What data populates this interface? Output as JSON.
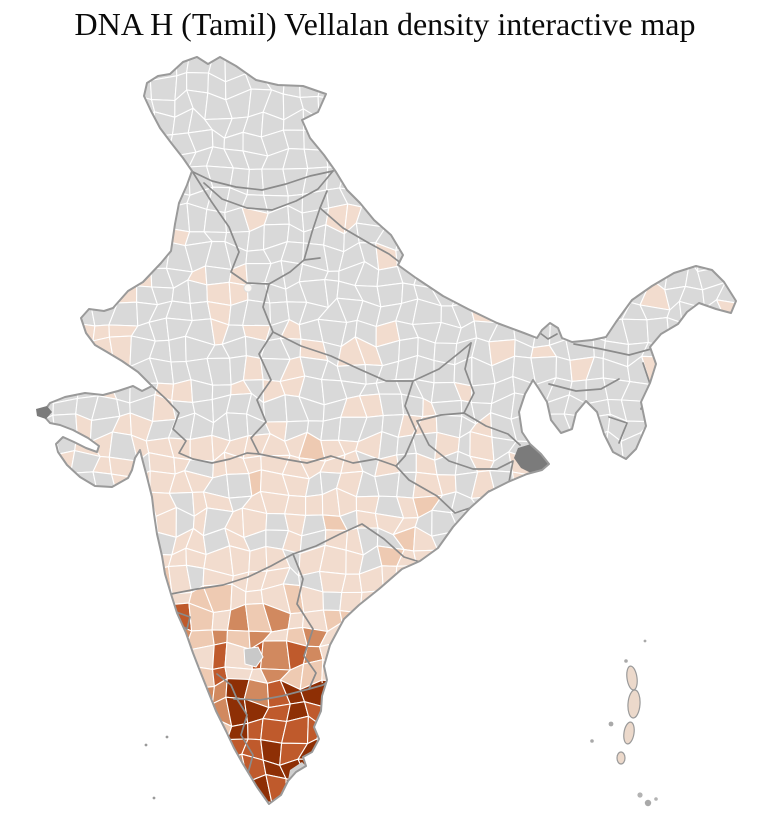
{
  "title": "DNA H (Tamil) Vellalan density interactive map",
  "map": {
    "palette": {
      "background": "#ffffff",
      "no_data_district": "#d9d9d9",
      "district_border": "#ffffff",
      "state_border": "#8b8b8b",
      "coast_border": "#9a9a9a",
      "delta_no_data_dark": "#7b7b7b",
      "island_fill": "#ecd9cb",
      "island_outline": "#9a9a9a",
      "density_scale": [
        "#f2dcce",
        "#eecab2",
        "#d1895f",
        "#bf5a2c",
        "#8e2f05"
      ]
    }
  }
}
